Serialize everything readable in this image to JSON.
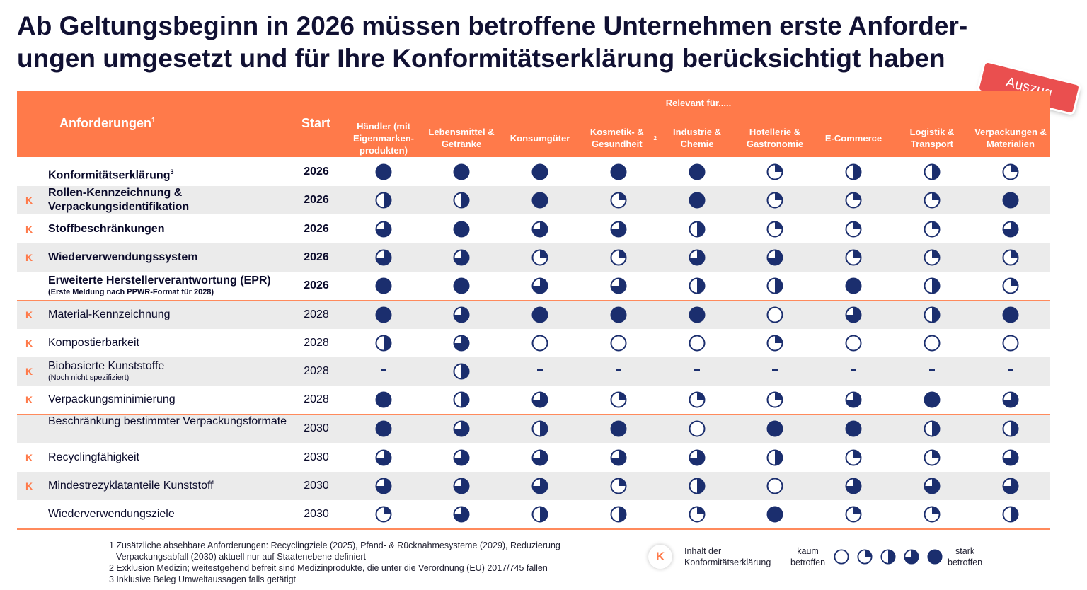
{
  "title": {
    "line1": "Ab Geltungsbeginn in 2026 müssen betroffene Unternehmen erste Anforder-",
    "line2": "ungen umgesetzt und für Ihre Konformitätserklärung berücksichtigt haben"
  },
  "stamp": "Auszug",
  "header": {
    "requirements": "Anforderungen",
    "requirements_sup": "1",
    "start": "Start",
    "relevant": "Relevant für.....",
    "columns": [
      {
        "label": "Händler (mit Eigenmarken-produkten)",
        "sup": ""
      },
      {
        "label": "Lebensmittel & Getränke",
        "sup": ""
      },
      {
        "label": "Konsumgüter",
        "sup": ""
      },
      {
        "label": "Kosmetik- & Gesundheit",
        "sup": "2"
      },
      {
        "label": "Industrie & Chemie",
        "sup": ""
      },
      {
        "label": "Hotellerie & Gastronomie",
        "sup": ""
      },
      {
        "label": "E-Commerce",
        "sup": ""
      },
      {
        "label": "Logistik & Transport",
        "sup": ""
      },
      {
        "label": "Verpackungen & Materialien",
        "sup": ""
      }
    ]
  },
  "rows": [
    {
      "name": "Konformitätserklärung",
      "sup": "3",
      "sub": "",
      "start": "2026",
      "k": false,
      "bold": true,
      "values": [
        4,
        4,
        4,
        4,
        4,
        1,
        2,
        2,
        1
      ]
    },
    {
      "name": "Rollen-Kennzeichnung & Verpackungsidentifikation",
      "sup": "",
      "sub": "",
      "start": "2026",
      "k": true,
      "bold": true,
      "values": [
        2,
        2,
        4,
        1,
        4,
        1,
        1,
        1,
        4
      ]
    },
    {
      "name": "Stoffbeschränkungen",
      "sup": "",
      "sub": "",
      "start": "2026",
      "k": true,
      "bold": true,
      "values": [
        3,
        4,
        3,
        3,
        2,
        1,
        1,
        1,
        3
      ]
    },
    {
      "name": "Wiederverwendungssystem",
      "sup": "",
      "sub": "",
      "start": "2026",
      "k": true,
      "bold": true,
      "values": [
        3,
        3,
        1,
        1,
        3,
        3,
        1,
        1,
        1
      ]
    },
    {
      "name": "Erweiterte Herstellerverantwortung (EPR)",
      "sup": "",
      "sub": "(Erste Meldung nach PPWR-Format für 2028)",
      "start": "2026",
      "k": false,
      "bold": true,
      "values": [
        4,
        4,
        3,
        3,
        2,
        2,
        4,
        2,
        1
      ]
    },
    {
      "name": "Material-Kennzeichnung",
      "sup": "",
      "sub": "",
      "start": "2028",
      "k": true,
      "bold": false,
      "values": [
        4,
        3,
        4,
        4,
        4,
        0,
        3,
        2,
        4
      ]
    },
    {
      "name": "Kompostierbarkeit",
      "sup": "",
      "sub": "",
      "start": "2028",
      "k": true,
      "bold": false,
      "values": [
        2,
        3,
        0,
        0,
        0,
        1,
        0,
        0,
        0
      ]
    },
    {
      "name": "Biobasierte Kunststoffe",
      "sup": "",
      "sub": "(Noch nicht spezifiziert)",
      "start": "2028",
      "k": true,
      "bold": false,
      "values": [
        "-",
        2,
        "-",
        "-",
        "-",
        "-",
        "-",
        "-",
        "-"
      ]
    },
    {
      "name": "Verpackungsminimierung",
      "sup": "",
      "sub": "",
      "start": "2028",
      "k": true,
      "bold": false,
      "values": [
        4,
        2,
        3,
        1,
        1,
        1,
        3,
        4,
        3
      ]
    },
    {
      "name": "Beschränkung bestimmter Verpackungsformate",
      "sup": "",
      "sub": "",
      "start": "2030",
      "k": false,
      "bold": false,
      "values": [
        4,
        3,
        2,
        4,
        0,
        4,
        4,
        2,
        2
      ]
    },
    {
      "name": "Recyclingfähigkeit",
      "sup": "",
      "sub": "",
      "start": "2030",
      "k": true,
      "bold": false,
      "values": [
        3,
        3,
        3,
        3,
        3,
        2,
        1,
        1,
        3
      ]
    },
    {
      "name": "Mindestrezyklatanteile Kunststoff",
      "sup": "",
      "sub": "",
      "start": "2030",
      "k": true,
      "bold": false,
      "values": [
        3,
        3,
        3,
        1,
        2,
        0,
        3,
        3,
        3
      ]
    },
    {
      "name": "Wiederverwendungsziele",
      "sup": "",
      "sub": "",
      "start": "2030",
      "k": false,
      "bold": false,
      "values": [
        1,
        3,
        2,
        2,
        1,
        4,
        1,
        1,
        2
      ]
    }
  ],
  "footnotes": [
    "1 Zusätzliche absehbare Anforderungen: Recyclingziele (2025), Pfand- & Rücknahmesysteme (2029), Reduzierung",
    "Verpackungsabfall (2030) aktuell nur auf Staatenebene definiert",
    "2 Exklusion Medizin; weitestgehend befreit sind Medizinprodukte, die unter die Verordnung (EU) 2017/745 fallen",
    "3 Inklusive Beleg Umweltaussagen falls getätigt"
  ],
  "legend": {
    "k_letter": "K",
    "k_line1": "Inhalt der",
    "k_line2": "Konformitätserklärung",
    "low_line1": "kaum",
    "low_line2": "betroffen",
    "high_line1": "stark",
    "high_line2": "betroffen",
    "scale": [
      0,
      1,
      2,
      3,
      4
    ]
  },
  "k_letter": "K",
  "colors": {
    "accent": "#ff7a4a",
    "ball": "#1b2e6e",
    "stamp": "#ea4f4f"
  }
}
